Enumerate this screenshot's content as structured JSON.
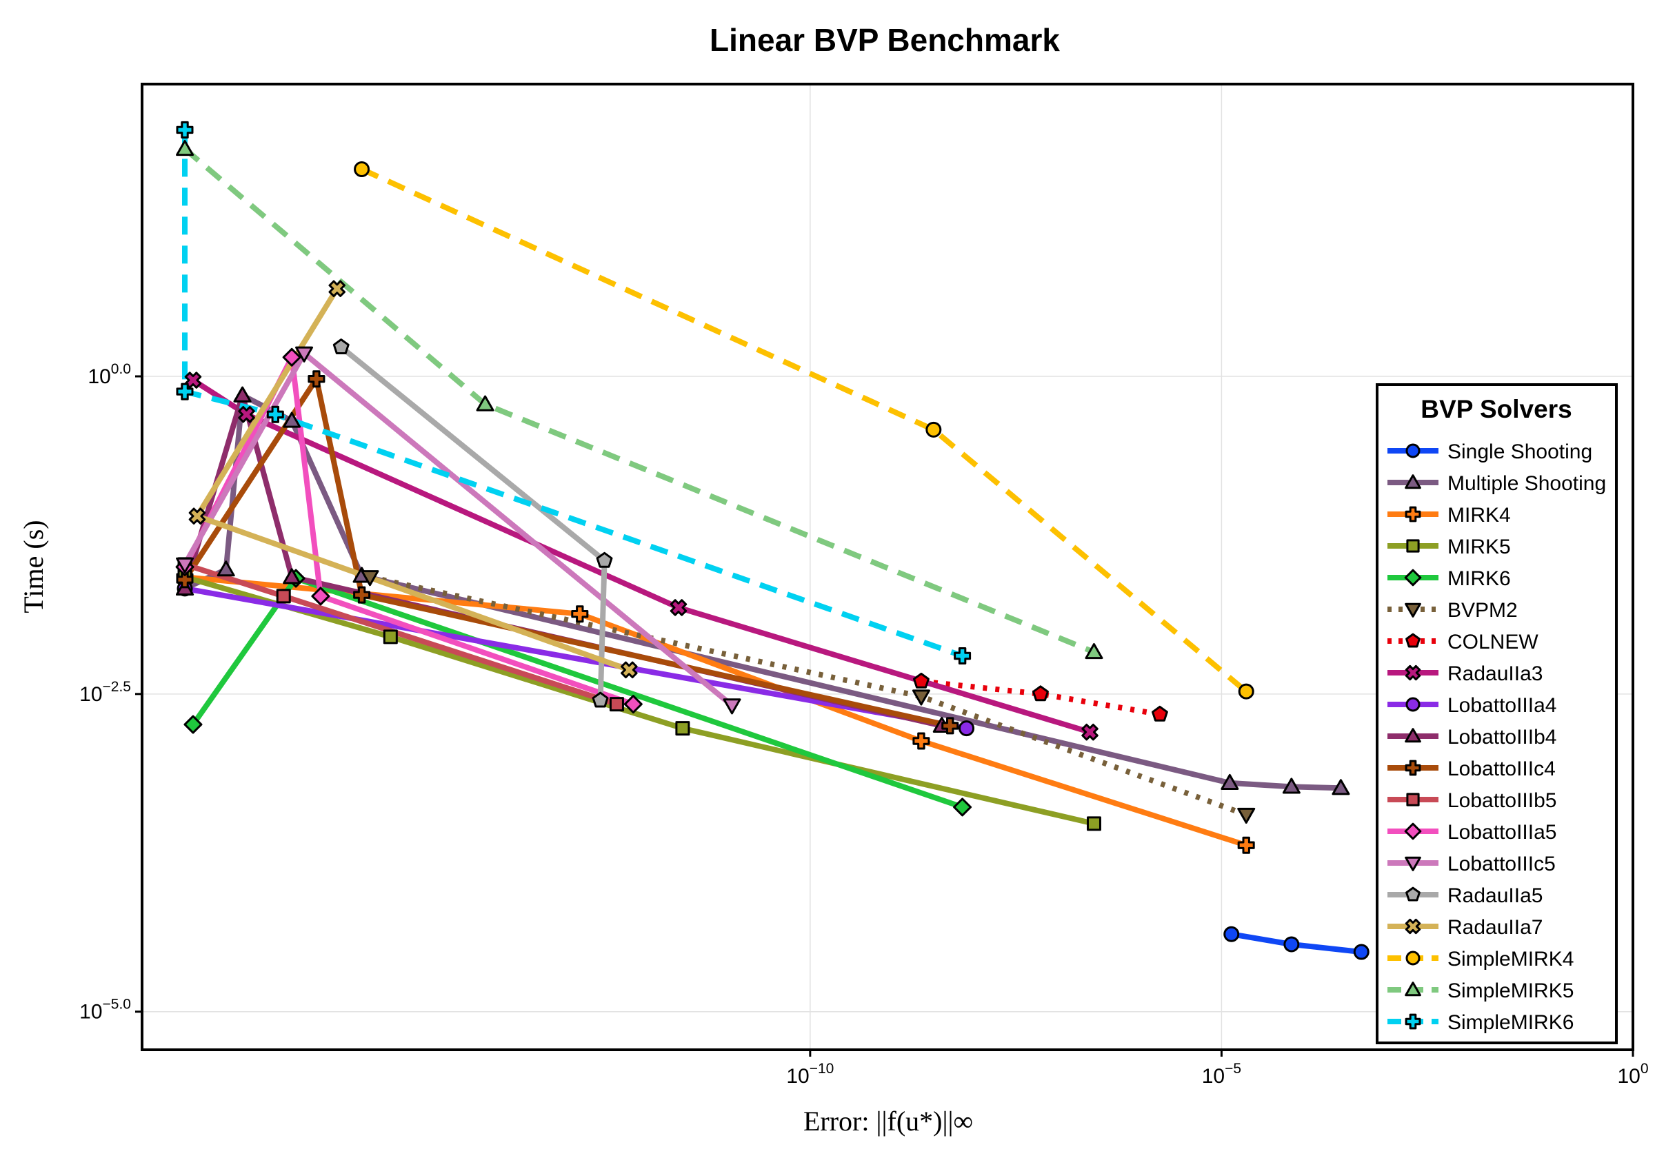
{
  "chart_data": {
    "type": "line",
    "title": "Linear BVP Benchmark",
    "xlabel": "Error: ||f(u*)||∞",
    "ylabel": "Time (s)",
    "xscale": "log10",
    "yscale": "log10",
    "xlim_exp": [
      -18.12,
      0
    ],
    "ylim_exp": [
      -5.3,
      2.3
    ],
    "grid": true,
    "x_ticks": [
      {
        "base": "10",
        "exp": "−10",
        "value": -10
      },
      {
        "base": "10",
        "exp": "−5",
        "value": -5
      },
      {
        "base": "10",
        "exp": "0",
        "value": 0
      }
    ],
    "y_ticks": [
      {
        "base": "10",
        "exp": "0.0",
        "value": 0
      },
      {
        "base": "10",
        "exp": "−2.5",
        "value": -2.5
      },
      {
        "base": "10",
        "exp": "−5.0",
        "value": -5
      }
    ],
    "legend": {
      "title": "BVP Solvers",
      "position": "right"
    },
    "series": [
      {
        "name": "Single Shooting",
        "color": "#0f47f5",
        "marker": "circle",
        "dash": "solid",
        "points": [
          [
            -4.88,
            -4.39
          ],
          [
            -4.15,
            -4.47
          ],
          [
            -3.3,
            -4.53
          ]
        ]
      },
      {
        "name": "Multiple Shooting",
        "color": "#7b5a82",
        "marker": "triangle-up",
        "dash": "solid",
        "points": [
          [
            -17.6,
            -1.67
          ],
          [
            -17.1,
            -1.52
          ],
          [
            -16.9,
            -0.15
          ],
          [
            -16.3,
            -0.35
          ],
          [
            -15.45,
            -1.57
          ],
          [
            -4.9,
            -3.2
          ],
          [
            -4.15,
            -3.23
          ],
          [
            -3.55,
            -3.24
          ]
        ]
      },
      {
        "name": "MIRK4",
        "color": "#ff7c12",
        "marker": "cross",
        "dash": "solid",
        "points": [
          [
            -17.6,
            -1.58
          ],
          [
            -12.8,
            -1.87
          ],
          [
            -8.65,
            -2.87
          ],
          [
            -4.7,
            -3.69
          ]
        ]
      },
      {
        "name": "MIRK5",
        "color": "#8d9f24",
        "marker": "square",
        "dash": "solid",
        "points": [
          [
            -17.6,
            -1.58
          ],
          [
            -15.1,
            -2.05
          ],
          [
            -11.55,
            -2.77
          ],
          [
            -6.55,
            -3.52
          ]
        ]
      },
      {
        "name": "MIRK6",
        "color": "#1fc83d",
        "marker": "diamond",
        "dash": "solid",
        "points": [
          [
            -17.5,
            -2.74
          ],
          [
            -16.25,
            -1.59
          ],
          [
            -8.15,
            -3.39
          ]
        ]
      },
      {
        "name": "BVPM2",
        "color": "#78603a",
        "marker": "triangle-down",
        "dash": "dot",
        "points": [
          [
            -15.35,
            -1.58
          ],
          [
            -8.65,
            -2.52
          ],
          [
            -4.7,
            -3.45
          ]
        ]
      },
      {
        "name": "COLNEW",
        "color": "#e8000b",
        "marker": "pentagon",
        "dash": "dot",
        "points": [
          [
            -8.65,
            -2.4
          ],
          [
            -7.2,
            -2.5
          ],
          [
            -5.75,
            -2.66
          ]
        ]
      },
      {
        "name": "RadauIIa3",
        "color": "#b8187e",
        "marker": "x",
        "dash": "solid",
        "points": [
          [
            -17.5,
            -0.03
          ],
          [
            -16.85,
            -0.3
          ],
          [
            -11.6,
            -1.82
          ],
          [
            -6.6,
            -2.8
          ]
        ]
      },
      {
        "name": "LobattoIIIa4",
        "color": "#8a2be6",
        "marker": "circle",
        "dash": "solid",
        "points": [
          [
            -17.6,
            -1.67
          ],
          [
            -8.1,
            -2.77
          ]
        ]
      },
      {
        "name": "LobattoIIIb4",
        "color": "#8e2d6b",
        "marker": "triangle-up",
        "dash": "solid",
        "points": [
          [
            -17.6,
            -1.67
          ],
          [
            -16.9,
            -0.15
          ],
          [
            -16.3,
            -1.58
          ],
          [
            -8.4,
            -2.75
          ]
        ]
      },
      {
        "name": "LobattoIIIc4",
        "color": "#a84b0a",
        "marker": "cross",
        "dash": "solid",
        "points": [
          [
            -17.6,
            -1.6
          ],
          [
            -16.0,
            -0.02
          ],
          [
            -15.45,
            -1.72
          ],
          [
            -8.3,
            -2.75
          ]
        ]
      },
      {
        "name": "LobattoIIIb5",
        "color": "#c84a56",
        "marker": "square",
        "dash": "solid",
        "points": [
          [
            -17.6,
            -1.48
          ],
          [
            -16.4,
            -1.73
          ],
          [
            -12.35,
            -2.58
          ]
        ]
      },
      {
        "name": "LobattoIIIa5",
        "color": "#f24fbe",
        "marker": "diamond",
        "dash": "solid",
        "points": [
          [
            -17.6,
            -1.5
          ],
          [
            -16.3,
            0.15
          ],
          [
            -15.95,
            -1.73
          ],
          [
            -12.15,
            -2.58
          ]
        ]
      },
      {
        "name": "LobattoIIIc5",
        "color": "#cc78bb",
        "marker": "triangle-down",
        "dash": "solid",
        "points": [
          [
            -17.6,
            -1.48
          ],
          [
            -16.15,
            0.18
          ],
          [
            -10.95,
            -2.59
          ]
        ]
      },
      {
        "name": "RadauIIa5",
        "color": "#a9a9a9",
        "marker": "pentagon",
        "dash": "solid",
        "points": [
          [
            -15.7,
            0.23
          ],
          [
            -12.5,
            -1.45
          ],
          [
            -12.55,
            -2.55
          ]
        ]
      },
      {
        "name": "RadauIIa7",
        "color": "#d4b257",
        "marker": "x",
        "dash": "solid",
        "points": [
          [
            -15.75,
            0.69
          ],
          [
            -17.45,
            -1.1
          ],
          [
            -12.2,
            -2.31
          ]
        ]
      },
      {
        "name": "SimpleMIRK4",
        "color": "#fdc000",
        "marker": "circle",
        "dash": "dash",
        "points": [
          [
            -15.45,
            1.63
          ],
          [
            -8.5,
            -0.42
          ],
          [
            -4.7,
            -2.48
          ]
        ]
      },
      {
        "name": "SimpleMIRK5",
        "color": "#7fc97f",
        "marker": "triangle-up",
        "dash": "dash",
        "points": [
          [
            -17.6,
            1.79
          ],
          [
            -13.95,
            -0.22
          ],
          [
            -6.55,
            -2.17
          ]
        ]
      },
      {
        "name": "SimpleMIRK6",
        "color": "#00d1f1",
        "marker": "cross",
        "dash": "dash",
        "points": [
          [
            -17.6,
            1.94
          ],
          [
            -17.6,
            -0.12
          ],
          [
            -16.5,
            -0.3
          ],
          [
            -8.15,
            -2.2
          ]
        ]
      }
    ]
  }
}
